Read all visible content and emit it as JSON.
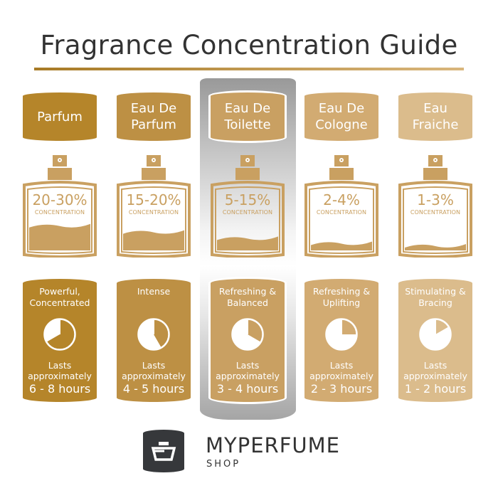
{
  "title": "Fragrance Concentration Guide",
  "highlighted_index": 2,
  "columns": [
    {
      "name_lines": [
        "Parfum"
      ],
      "concentration": "20-30%",
      "concentration_label": "CONCENTRATION",
      "fill_level": 0.4,
      "description_lines": [
        "Powerful,",
        "Concentrated"
      ],
      "lasts_lines": [
        "Lasts",
        "approximately"
      ],
      "hours": "6 - 8 hours",
      "clock_hours": 8,
      "color": "#b5852a"
    },
    {
      "name_lines": [
        "Eau De",
        "Parfum"
      ],
      "concentration": "15-20%",
      "concentration_label": "CONCENTRATION",
      "fill_level": 0.3,
      "description_lines": [
        "Intense"
      ],
      "lasts_lines": [
        "Lasts",
        "approximately"
      ],
      "hours": "4 - 5 hours",
      "clock_hours": 5,
      "color": "#bd9044"
    },
    {
      "name_lines": [
        "Eau De",
        "Toilette"
      ],
      "concentration": "5-15%",
      "concentration_label": "CONCENTRATION",
      "fill_level": 0.2,
      "description_lines": [
        "Refreshing &",
        "Balanced"
      ],
      "lasts_lines": [
        "Lasts",
        "approximately"
      ],
      "hours": "3 - 4 hours",
      "clock_hours": 4,
      "color": "#c9a062"
    },
    {
      "name_lines": [
        "Eau De",
        "Cologne"
      ],
      "concentration": "2-4%",
      "concentration_label": "CONCENTRATION",
      "fill_level": 0.12,
      "description_lines": [
        "Refreshing &",
        "Uplifting"
      ],
      "lasts_lines": [
        "Lasts",
        "approximately"
      ],
      "hours": "2 - 3 hours",
      "clock_hours": 3,
      "color": "#d2ab72"
    },
    {
      "name_lines": [
        "Eau",
        "Fraiche"
      ],
      "concentration": "1-3%",
      "concentration_label": "CONCENTRATION",
      "fill_level": 0.08,
      "description_lines": [
        "Stimulating &",
        "Bracing"
      ],
      "lasts_lines": [
        "Lasts",
        "approximately"
      ],
      "hours": "1 - 2 hours",
      "clock_hours": 2,
      "color": "#dbbc8c"
    }
  ],
  "bottle_color": "#c9a061",
  "brand": {
    "name": "MYPERFUME",
    "sub": "SHOP"
  }
}
